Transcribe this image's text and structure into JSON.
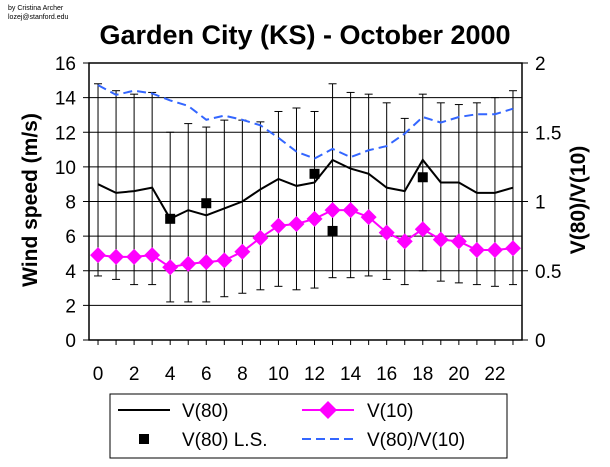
{
  "credit": [
    "by Cristina Archer",
    "lozej@stanford.edu"
  ],
  "chart_data": {
    "type": "line",
    "title": "Garden City (KS) - October 2000",
    "ylabel": "Wind speed (m/s)",
    "y2label": "V(80)/V(10)",
    "xlabel": "",
    "x": [
      0,
      1,
      2,
      3,
      4,
      5,
      6,
      7,
      8,
      9,
      10,
      11,
      12,
      13,
      14,
      15,
      16,
      17,
      18,
      19,
      20,
      21,
      22,
      23
    ],
    "x_ticks": [
      "0",
      "2",
      "4",
      "6",
      "8",
      "10",
      "12",
      "14",
      "16",
      "18",
      "20",
      "22"
    ],
    "y_ticks": [
      "0",
      "2",
      "4",
      "6",
      "8",
      "10",
      "12",
      "14",
      "16"
    ],
    "y2_ticks": [
      "0",
      "0.5",
      "1",
      "1.5",
      "2"
    ],
    "xlim": [
      -0.5,
      23.5
    ],
    "ylim": [
      0,
      16
    ],
    "y2lim": [
      0,
      2
    ],
    "grid": "horizontal",
    "legend_position": "bottom",
    "series": [
      {
        "name": "V(80)",
        "axis": "left",
        "style": "solid-line",
        "color": "#000000",
        "values": [
          9.0,
          8.5,
          8.6,
          8.8,
          7.0,
          7.5,
          7.2,
          7.6,
          8.0,
          8.7,
          9.3,
          8.9,
          9.1,
          10.4,
          9.9,
          9.6,
          8.8,
          8.6,
          10.4,
          9.1,
          9.1,
          8.5,
          8.5,
          8.8
        ],
        "error_low": [
          5.3,
          5.0,
          5.4,
          5.6,
          4.8,
          5.3,
          5.0,
          5.1,
          5.3,
          5.8,
          6.2,
          6.0,
          6.1,
          6.8,
          6.3,
          5.9,
          5.3,
          5.4,
          6.4,
          5.7,
          5.8,
          5.3,
          5.4,
          5.6
        ],
        "error_high": [
          5.8,
          5.9,
          5.6,
          5.5,
          5.0,
          5.0,
          5.1,
          5.1,
          4.7,
          3.9,
          3.9,
          4.5,
          4.1,
          4.4,
          4.4,
          4.6,
          4.9,
          4.2,
          3.8,
          4.6,
          4.5,
          5.2,
          5.5,
          5.6
        ]
      },
      {
        "name": "V(10)",
        "axis": "left",
        "style": "line-with-diamonds",
        "color": "#ff00ff",
        "values": [
          4.9,
          4.8,
          4.8,
          4.9,
          4.2,
          4.4,
          4.5,
          4.6,
          5.1,
          5.9,
          6.6,
          6.7,
          7.0,
          7.5,
          7.5,
          7.1,
          6.2,
          5.7,
          6.4,
          5.8,
          5.7,
          5.2,
          5.2,
          5.3
        ]
      },
      {
        "name": "V(80) L.S.",
        "axis": "left",
        "style": "black-square-markers",
        "color": "#000000",
        "x": [
          4,
          6,
          12,
          13,
          18
        ],
        "values": [
          7.0,
          7.9,
          9.6,
          6.3,
          9.4
        ]
      },
      {
        "name": "V(80)/V(10)",
        "axis": "right",
        "style": "dashed-line",
        "color": "#3366ff",
        "values": [
          1.84,
          1.77,
          1.8,
          1.78,
          1.73,
          1.69,
          1.59,
          1.62,
          1.59,
          1.55,
          1.46,
          1.36,
          1.31,
          1.38,
          1.32,
          1.37,
          1.4,
          1.49,
          1.61,
          1.57,
          1.61,
          1.63,
          1.63,
          1.67
        ]
      }
    ]
  }
}
